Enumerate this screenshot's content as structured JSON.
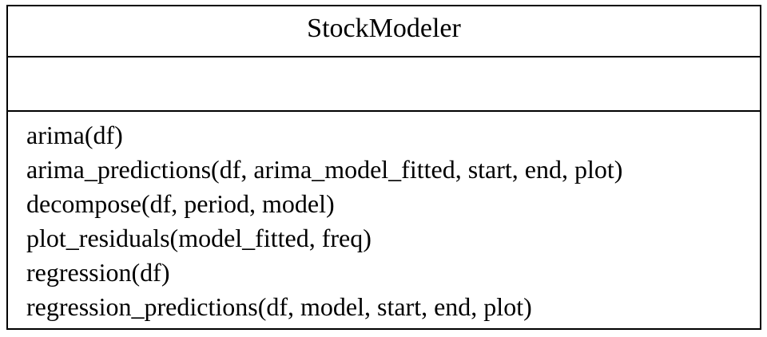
{
  "class": {
    "name": "StockModeler",
    "attributes": [],
    "operations": [
      "arima(df)",
      "arima_predictions(df, arima_model_fitted, start, end, plot)",
      "decompose(df, period, model)",
      "plot_residuals(model_fitted, freq)",
      "regression(df)",
      "regression_predictions(df, model, start, end, plot)"
    ]
  }
}
